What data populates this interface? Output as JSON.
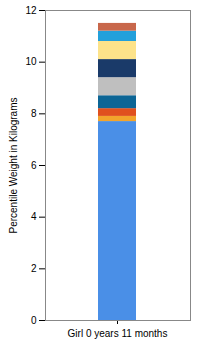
{
  "chart_data": {
    "type": "bar",
    "stacked": true,
    "y_label": "Percentile Weight in Kilograms",
    "categories": [
      "Girl 0 years 11 months"
    ],
    "series": [
      {
        "color": "#4a8fe7",
        "values": [
          7.7
        ]
      },
      {
        "color": "#f2a42c",
        "values": [
          0.2
        ]
      },
      {
        "color": "#e0501e",
        "values": [
          0.3
        ]
      },
      {
        "color": "#0c6595",
        "values": [
          0.5
        ]
      },
      {
        "color": "#bfbfbf",
        "values": [
          0.7
        ]
      },
      {
        "color": "#1a3a69",
        "values": [
          0.7
        ]
      },
      {
        "color": "#fde38a",
        "values": [
          0.7
        ]
      },
      {
        "color": "#23a0db",
        "values": [
          0.4
        ]
      },
      {
        "color": "#c8674b",
        "values": [
          0.3
        ]
      }
    ],
    "ylim": [
      0,
      12
    ],
    "yticks": [
      0,
      2,
      4,
      6,
      8,
      10,
      12
    ],
    "grid": false
  }
}
